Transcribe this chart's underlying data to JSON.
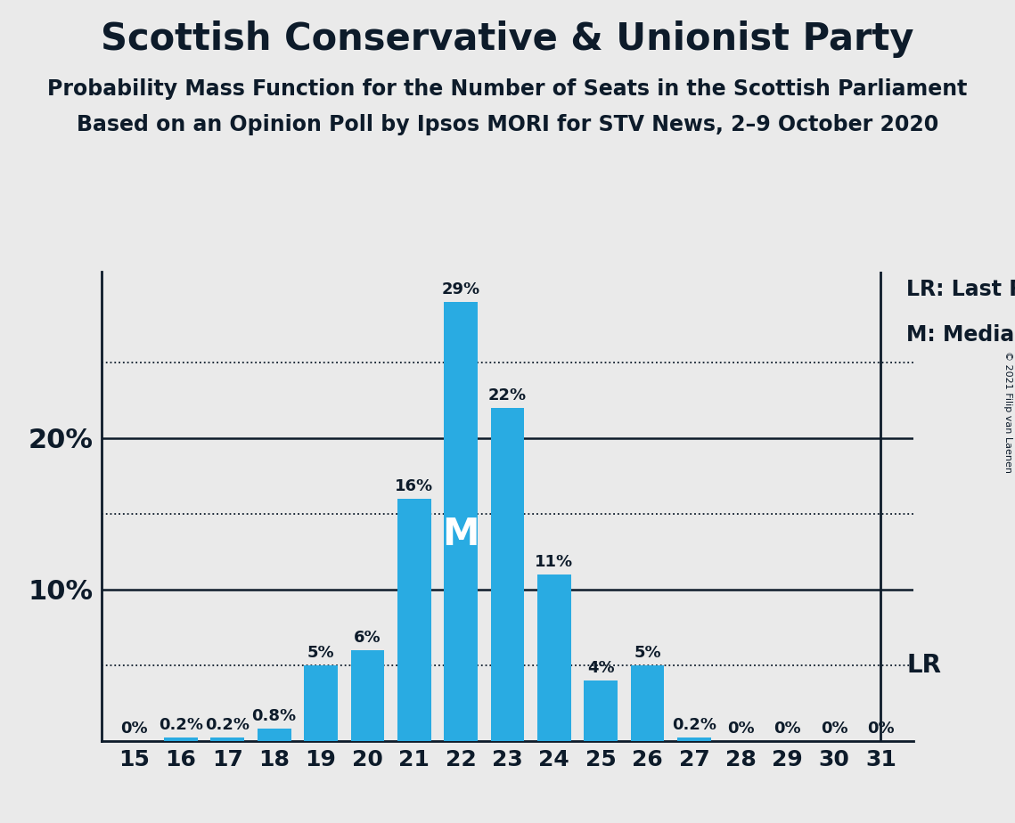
{
  "title": "Scottish Conservative & Unionist Party",
  "subtitle1": "Probability Mass Function for the Number of Seats in the Scottish Parliament",
  "subtitle2": "Based on an Opinion Poll by Ipsos MORI for STV News, 2–9 October 2020",
  "copyright": "© 2021 Filip van Laenen",
  "seats": [
    15,
    16,
    17,
    18,
    19,
    20,
    21,
    22,
    23,
    24,
    25,
    26,
    27,
    28,
    29,
    30,
    31
  ],
  "probabilities": [
    0.0,
    0.2,
    0.2,
    0.8,
    5.0,
    6.0,
    16.0,
    29.0,
    22.0,
    11.0,
    4.0,
    5.0,
    0.2,
    0.0,
    0.0,
    0.0,
    0.0
  ],
  "bar_color": "#29ABE2",
  "background_color": "#EAEAEA",
  "text_color": "#0D1B2A",
  "median_seat": 22,
  "lr_seat": 31,
  "lr_label": "LR: Last Result",
  "median_label": "M: Median",
  "median_marker": "M",
  "ylim": [
    0,
    31
  ],
  "dotted_lines": [
    5,
    15,
    25
  ],
  "solid_lines": [
    10,
    20
  ],
  "bar_width": 0.72,
  "title_fontsize": 30,
  "subtitle_fontsize": 17,
  "tick_fontsize": 18,
  "ytick_fontsize": 22,
  "label_fontsize": 13,
  "legend_fontsize": 17,
  "lr_text_fontsize": 20,
  "median_marker_fontsize": 30
}
